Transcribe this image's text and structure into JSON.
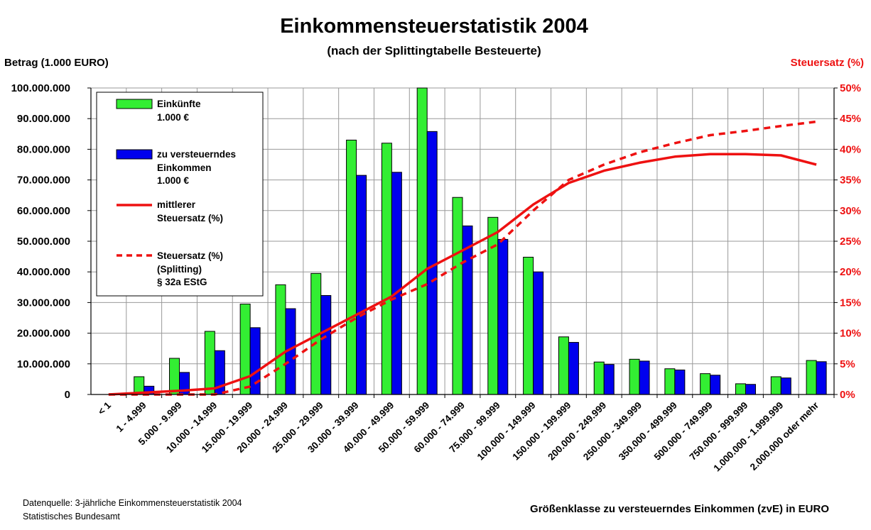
{
  "chart_data": {
    "type": "bar",
    "title": "Einkommensteuerstatistik 2004",
    "subtitle": "(nach der Splittingtabelle Besteuerte)",
    "ylabel": "Betrag (1.000 EURO)",
    "y2label": "Steuersatz (%)",
    "xlabel": "Größenklasse zu versteuerndes Einkommen (zvE) in EURO",
    "source_line1": "Datenquelle: 3-jährliche Einkommensteuerstatistik 2004",
    "source_line2": "Statistisches Bundesamt",
    "ylim": [
      0,
      100000000
    ],
    "y2lim": [
      0,
      50
    ],
    "yticks": [
      "0",
      "10.000.000",
      "20.000.000",
      "30.000.000",
      "40.000.000",
      "50.000.000",
      "60.000.000",
      "70.000.000",
      "80.000.000",
      "90.000.000",
      "100.000.000"
    ],
    "y2ticks": [
      "0%",
      "5%",
      "10%",
      "15%",
      "20%",
      "25%",
      "30%",
      "35%",
      "40%",
      "45%",
      "50%"
    ],
    "categories": [
      "< 1",
      "1 - 4.999",
      "5.000 - 9.999",
      "10.000 - 14.999",
      "15.000 - 19.999",
      "20.000 - 24.999",
      "25.000 - 29.999",
      "30.000 - 39.999",
      "40.000 - 49.999",
      "50.000 - 59.999",
      "60.000 - 74.999",
      "75.000 - 99.999",
      "100.000 - 149.999",
      "150.000 - 199.999",
      "200.000 - 249.999",
      "250.000 - 349.999",
      "350.000 - 499.999",
      "500.000 - 749.999",
      "750.000 - 999.999",
      "1.000.000 - 1.999.999",
      "2.000.000 oder mehr"
    ],
    "legend": {
      "einkuenfte_line1": "Einkünfte",
      "einkuenfte_line2": "1.000 €",
      "zve_line1": "zu versteuerndes",
      "zve_line2": "Einkommen",
      "zve_line3": "1.000 €",
      "mittlerer_line1": "mittlerer",
      "mittlerer_line2": "Steuersatz (%)",
      "splitting_line1": "Steuersatz (%)",
      "splitting_line2": "(Splitting)",
      "splitting_line3": "§ 32a EStG"
    },
    "series": [
      {
        "name": "Einkünfte 1.000 €",
        "kind": "bar",
        "color": "#33ee33",
        "values": [
          0,
          5800000,
          11800000,
          20600000,
          29500000,
          35800000,
          39500000,
          83000000,
          82000000,
          100000000,
          64300000,
          57800000,
          44800000,
          18800000,
          10600000,
          11500000,
          8400000,
          6800000,
          3500000,
          5800000,
          11100000
        ]
      },
      {
        "name": "zu versteuerndes Einkommen 1.000 €",
        "kind": "bar",
        "color": "#0000ee",
        "values": [
          0,
          2700000,
          7200000,
          14300000,
          21800000,
          28000000,
          32300000,
          71500000,
          72500000,
          85800000,
          55000000,
          50600000,
          40000000,
          17000000,
          9800000,
          10900000,
          8000000,
          6300000,
          3300000,
          5400000,
          10700000
        ]
      },
      {
        "name": "mittlerer Steuersatz (%)",
        "kind": "line",
        "color": "#ee1111",
        "values": [
          0,
          0.3,
          0.6,
          1.0,
          3.0,
          7.0,
          10.0,
          13.0,
          16.0,
          20.5,
          23.5,
          26.5,
          31.0,
          34.5,
          36.5,
          37.8,
          38.8,
          39.2,
          39.2,
          39.0,
          37.5
        ]
      },
      {
        "name": "Steuersatz (%) (Splitting) § 32a EStG",
        "kind": "line-dashed",
        "color": "#ee1111",
        "values": [
          0,
          0,
          0,
          0,
          1.3,
          5.0,
          9.0,
          12.5,
          15.5,
          18.0,
          21.5,
          24.5,
          30.0,
          35.0,
          37.5,
          39.5,
          41.0,
          42.3,
          43.0,
          43.8,
          44.5
        ]
      }
    ]
  }
}
